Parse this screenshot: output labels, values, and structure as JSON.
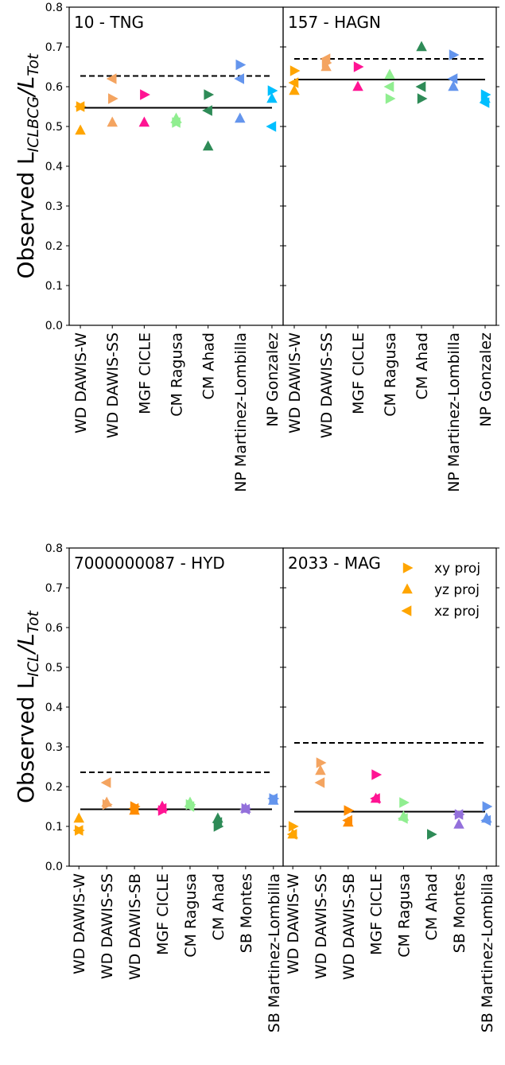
{
  "figure": {
    "legend_title": "",
    "legend": [
      {
        "label": "xy proj",
        "marker": "tri-right"
      },
      {
        "label": "yz proj",
        "marker": "tri-up"
      },
      {
        "label": "xz proj",
        "marker": "tri-left"
      }
    ]
  },
  "colors": {
    "WD DAWIS-W": "#ffa500",
    "WD DAWIS-SS": "#f4a460",
    "WD DAWIS-SB": "#ff8c00",
    "MGF CICLE": "#ff1493",
    "CM Ragusa": "#90ee90",
    "CM Ahad": "#2e8b57",
    "SB Montes": "#9370db",
    "NP Martinez-Lombilla": "#6495ed",
    "SB Martinez-Lombilla": "#6495ed",
    "NP Gonzalez": "#00bfff"
  },
  "chart_data": [
    {
      "type": "scatter",
      "title": "10 - TNG",
      "ylabel": "Observed L_ICLBCG/L_Tot",
      "ylim": [
        0,
        0.8
      ],
      "yticks": [
        "0.0",
        "0.1",
        "0.2",
        "0.3",
        "0.4",
        "0.5",
        "0.6",
        "0.7",
        "0.8"
      ],
      "show_yticklabels": true,
      "show_ylabel": true,
      "categories": [
        "WD DAWIS-W",
        "WD DAWIS-SS",
        "MGF CICLE",
        "CM Ragusa",
        "CM Ahad",
        "NP Martinez-Lombilla",
        "NP Gonzalez"
      ],
      "solid_line": 0.547,
      "dashed_line": 0.627,
      "series": [
        {
          "name": "xy proj",
          "values": [
            0.55,
            0.57,
            0.58,
            0.51,
            0.58,
            0.655,
            0.59
          ]
        },
        {
          "name": "yz proj",
          "values": [
            0.49,
            0.51,
            0.51,
            0.52,
            0.45,
            0.52,
            0.57
          ]
        },
        {
          "name": "xz proj",
          "values": [
            0.55,
            0.62,
            null,
            0.51,
            0.54,
            0.62,
            0.5
          ]
        }
      ]
    },
    {
      "type": "scatter",
      "title": "157 - HAGN",
      "ylabel": "",
      "ylim": [
        0,
        0.8
      ],
      "yticks": [
        "0.0",
        "0.1",
        "0.2",
        "0.3",
        "0.4",
        "0.5",
        "0.6",
        "0.7",
        "0.8"
      ],
      "show_yticklabels": false,
      "show_ylabel": false,
      "categories": [
        "WD DAWIS-W",
        "WD DAWIS-SS",
        "MGF CICLE",
        "CM Ragusa",
        "CM Ahad",
        "NP Martinez-Lombilla",
        "NP Gonzalez"
      ],
      "solid_line": 0.618,
      "dashed_line": 0.67,
      "series": [
        {
          "name": "xy proj",
          "values": [
            0.64,
            0.66,
            0.65,
            0.57,
            0.57,
            0.68,
            0.58
          ]
        },
        {
          "name": "yz proj",
          "values": [
            0.59,
            0.65,
            0.6,
            0.63,
            0.7,
            0.6,
            0.57
          ]
        },
        {
          "name": "xz proj",
          "values": [
            0.61,
            0.67,
            null,
            0.6,
            0.6,
            0.62,
            0.56
          ]
        }
      ]
    },
    {
      "type": "scatter",
      "title": "7000000087 - HYD",
      "ylabel": "Observed L_ICL/L_Tot",
      "ylim": [
        0,
        0.8
      ],
      "yticks": [
        "0.0",
        "0.1",
        "0.2",
        "0.3",
        "0.4",
        "0.5",
        "0.6",
        "0.7",
        "0.8"
      ],
      "show_yticklabels": true,
      "show_ylabel": true,
      "categories": [
        "WD DAWIS-W",
        "WD DAWIS-SS",
        "WD DAWIS-SB",
        "MGF CICLE",
        "CM Ragusa",
        "CM Ahad",
        "SB Montes",
        "SB Martinez-Lombilla"
      ],
      "solid_line": 0.143,
      "dashed_line": 0.236,
      "series": [
        {
          "name": "xy proj",
          "values": [
            0.09,
            0.155,
            0.15,
            0.14,
            0.155,
            0.1,
            0.145,
            0.17
          ]
        },
        {
          "name": "yz proj",
          "values": [
            0.12,
            0.16,
            0.14,
            0.15,
            0.16,
            0.12,
            0.145,
            0.165
          ]
        },
        {
          "name": "xz proj",
          "values": [
            0.09,
            0.21,
            0.145,
            0.145,
            0.15,
            0.11,
            0.143,
            0.17
          ]
        }
      ]
    },
    {
      "type": "scatter",
      "title": "2033 - MAG",
      "ylabel": "",
      "ylim": [
        0,
        0.8
      ],
      "yticks": [
        "0.0",
        "0.1",
        "0.2",
        "0.3",
        "0.4",
        "0.5",
        "0.6",
        "0.7",
        "0.8"
      ],
      "show_yticklabels": false,
      "show_ylabel": false,
      "categories": [
        "WD DAWIS-W",
        "WD DAWIS-SS",
        "WD DAWIS-SB",
        "MGF CICLE",
        "CM Ragusa",
        "CM Ahad",
        "SB Montes",
        "SB Martinez-Lombilla"
      ],
      "solid_line": 0.137,
      "dashed_line": 0.31,
      "series": [
        {
          "name": "xy proj",
          "values": [
            0.1,
            0.26,
            0.14,
            0.23,
            0.16,
            0.08,
            0.13,
            0.15
          ]
        },
        {
          "name": "yz proj",
          "values": [
            0.08,
            0.24,
            0.11,
            0.17,
            0.125,
            null,
            0.105,
            0.12
          ]
        },
        {
          "name": "xz proj",
          "values": [
            0.08,
            0.21,
            0.115,
            0.17,
            0.12,
            null,
            0.13,
            0.115
          ]
        }
      ]
    }
  ]
}
